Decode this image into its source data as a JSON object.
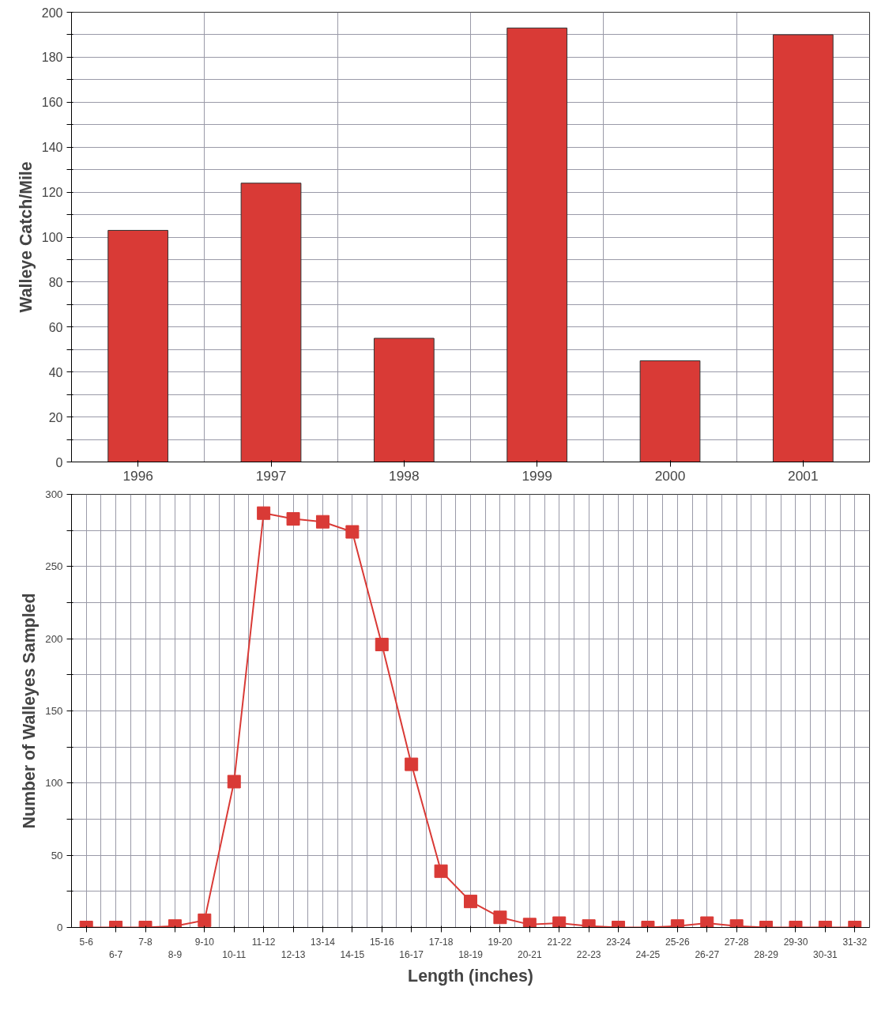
{
  "chart_data": [
    {
      "type": "bar",
      "ylabel": "Walleye Catch/Mile",
      "categories": [
        "1996",
        "1997",
        "1998",
        "1999",
        "2000",
        "2001"
      ],
      "values": [
        103,
        124,
        55,
        193,
        45,
        190
      ],
      "color": "#d93a36",
      "ylim": [
        0,
        200
      ],
      "yticks": [
        0,
        {
          "value": 10,
          "label": null
        },
        20,
        {
          "value": 30,
          "label": null
        },
        40,
        {
          "value": 50,
          "label": null
        },
        60,
        {
          "value": 70,
          "label": null
        },
        80,
        {
          "value": 90,
          "label": null
        },
        100,
        {
          "value": 110,
          "label": null
        },
        120,
        {
          "value": 130,
          "label": null
        },
        140,
        {
          "value": 150,
          "label": null
        },
        160,
        {
          "value": 170,
          "label": null
        },
        180,
        {
          "value": 190,
          "label": null
        },
        200
      ],
      "grid": true
    },
    {
      "type": "line",
      "xlabel": "Length (inches)",
      "ylabel": "Number of Walleyes Sampled",
      "categories": [
        "5-6",
        "6-7",
        "7-8",
        "8-9",
        "9-10",
        "10-11",
        "11-12",
        "12-13",
        "13-14",
        "14-15",
        "15-16",
        "16-17",
        "17-18",
        "18-19",
        "19-20",
        "20-21",
        "21-22",
        "22-23",
        "23-24",
        "24-25",
        "25-26",
        "26-27",
        "27-28",
        "28-29",
        "29-30",
        "30-31",
        "31-32"
      ],
      "values": [
        0,
        0,
        0,
        1,
        5,
        101,
        287,
        283,
        281,
        274,
        196,
        113,
        39,
        18,
        7,
        2,
        3,
        1,
        0,
        0,
        1,
        3,
        1,
        0,
        0,
        0,
        0
      ],
      "color": "#d93a36",
      "marker": "square",
      "line_style": "solid",
      "ylim": [
        0,
        300
      ],
      "yticks": [
        0,
        {
          "value": 25,
          "label": null
        },
        50,
        {
          "value": 75,
          "label": null
        },
        100,
        {
          "value": 125,
          "label": null
        },
        150,
        {
          "value": 175,
          "label": null
        },
        200,
        {
          "value": 225,
          "label": null
        },
        250,
        {
          "value": 275,
          "label": null
        },
        300
      ],
      "grid": true
    }
  ]
}
